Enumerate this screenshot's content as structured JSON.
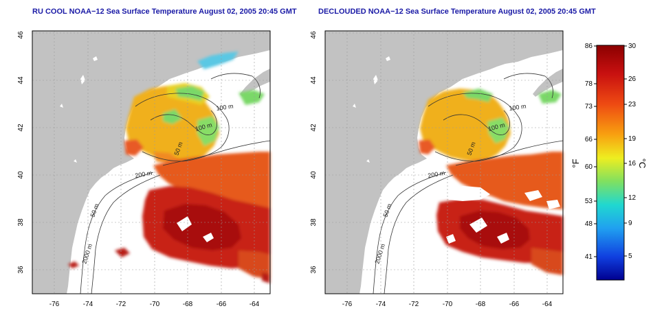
{
  "titles": {
    "left": "RU COOL NOAA−12 Sea Surface Temperature August 02, 2005 20:45 GMT",
    "right": "DECLOUDED NOAA−12 Sea Surface Temperature August 02, 2005 20:45 GMT"
  },
  "axes": {
    "lon_ticks": [
      "-76",
      "-74",
      "-72",
      "-70",
      "-68",
      "-66",
      "-64"
    ],
    "lat_ticks": [
      "36",
      "38",
      "40",
      "42",
      "44",
      "46"
    ]
  },
  "contour_labels": [
    "100 m",
    "100 m",
    "50 m",
    "200 m",
    "50 m",
    "2000 m"
  ],
  "colorbar": {
    "f_ticks": [
      "86",
      "78",
      "73",
      "66",
      "60",
      "53",
      "48",
      "41"
    ],
    "c_ticks": [
      "30",
      "26",
      "23",
      "19",
      "16",
      "12",
      "9",
      "5"
    ],
    "f_label": "°F",
    "c_label": "°C"
  },
  "colors": {
    "land": "#c2c2c2",
    "ocean": "#ffffff",
    "title": "#1a1aa6",
    "warm_core": "#a80f0f",
    "gulf_stream": "#e14a1d",
    "shelf_warm": "#f0a01e",
    "cool": "#6cd86a",
    "cold": "#42c8e8"
  }
}
